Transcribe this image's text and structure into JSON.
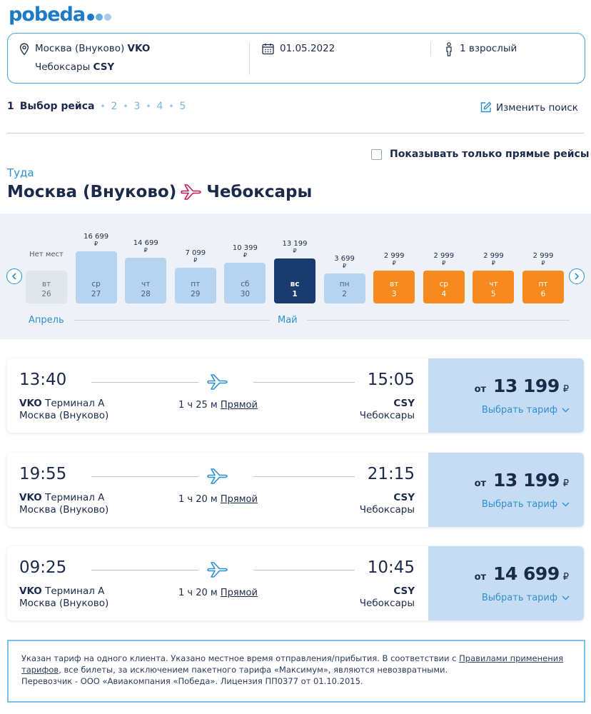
{
  "brand": {
    "name": "pobeda",
    "color": "#1d7ac6",
    "dot_colors": [
      "#1d7ac6",
      "#6aaedd",
      "#a7cdea"
    ]
  },
  "search": {
    "from_city": "Москва (Внуково)",
    "from_code": "VKO",
    "to_city": "Чебоксары",
    "to_code": "CSY",
    "date": "01.05.2022",
    "passengers": "1 взрослый",
    "icons": [
      "location-pin-icon",
      "calendar-icon",
      "person-icon"
    ]
  },
  "steps": {
    "active_num": "1",
    "active_label": "Выбор рейса",
    "others": [
      "2",
      "3",
      "4",
      "5"
    ],
    "change_search": "Изменить поиск"
  },
  "filters": {
    "direct_only_label": "Показывать только прямые рейсы",
    "direct_only_checked": false
  },
  "direction": {
    "label": "Туда",
    "from": "Москва (Внуково)",
    "to": "Чебоксары"
  },
  "calendar": {
    "months": [
      "Апрель",
      "Май"
    ],
    "no_seats_label": "Нет мест",
    "currency": "₽",
    "days": [
      {
        "wd": "вт",
        "d": "26",
        "price": "",
        "state": "none",
        "rel": 0
      },
      {
        "wd": "ср",
        "d": "27",
        "price": "16 699",
        "state": "normal",
        "rel": 1.0
      },
      {
        "wd": "чт",
        "d": "28",
        "price": "14 699",
        "state": "normal",
        "rel": 0.88
      },
      {
        "wd": "пт",
        "d": "29",
        "price": "7 099",
        "state": "normal",
        "rel": 0.68
      },
      {
        "wd": "сб",
        "d": "30",
        "price": "10 399",
        "state": "normal",
        "rel": 0.78
      },
      {
        "wd": "вс",
        "d": "1",
        "price": "13 199",
        "state": "selected",
        "rel": 0.86
      },
      {
        "wd": "пн",
        "d": "2",
        "price": "3 699",
        "state": "normal",
        "rel": 0.58
      },
      {
        "wd": "вт",
        "d": "3",
        "price": "2 999",
        "state": "cheapest",
        "rel": 0.56
      },
      {
        "wd": "ср",
        "d": "4",
        "price": "2 999",
        "state": "cheapest",
        "rel": 0.56
      },
      {
        "wd": "чт",
        "d": "5",
        "price": "2 999",
        "state": "cheapest",
        "rel": 0.56
      },
      {
        "wd": "пт",
        "d": "6",
        "price": "2 999",
        "state": "cheapest",
        "rel": 0.56
      }
    ],
    "colors": {
      "normal": "#b6d3ef",
      "selected": "#1a3b6d",
      "cheapest": "#f68a1f",
      "none": "#e1e6ec"
    }
  },
  "flights": [
    {
      "dep": "13:40",
      "arr": "15:05",
      "from_code": "VKO",
      "terminal": "Терминал А",
      "from_city": "Москва (Внуково)",
      "to_code": "CSY",
      "to_city": "Чебоксары",
      "duration": "1 ч 25 м",
      "type": "Прямой",
      "price_from": "от",
      "price": "13 199",
      "currency": "₽",
      "select": "Выбрать тариф"
    },
    {
      "dep": "19:55",
      "arr": "21:15",
      "from_code": "VKO",
      "terminal": "Терминал А",
      "from_city": "Москва (Внуково)",
      "to_code": "CSY",
      "to_city": "Чебоксары",
      "duration": "1 ч 20 м",
      "type": "Прямой",
      "price_from": "от",
      "price": "13 199",
      "currency": "₽",
      "select": "Выбрать тариф"
    },
    {
      "dep": "09:25",
      "arr": "10:45",
      "from_code": "VKO",
      "terminal": "Терминал А",
      "from_city": "Москва (Внуково)",
      "to_code": "CSY",
      "to_city": "Чебоксары",
      "duration": "1 ч 20 м",
      "type": "Прямой",
      "price_from": "от",
      "price": "14 699",
      "currency": "₽",
      "select": "Выбрать тариф"
    }
  ],
  "notice": {
    "text1": "Указан тариф на одного клиента. Указано местное время отправления/прибытия. В соответствии с ",
    "link": "Правилами применения тарифов",
    "text2": ", все билеты, за исключением пакетного тарифа «Максимум», являются невозвратными.",
    "line3": "Перевозчик - ООО «Авиакомпания «Победа». Лицензия ПП0377 от 01.10.2015."
  }
}
